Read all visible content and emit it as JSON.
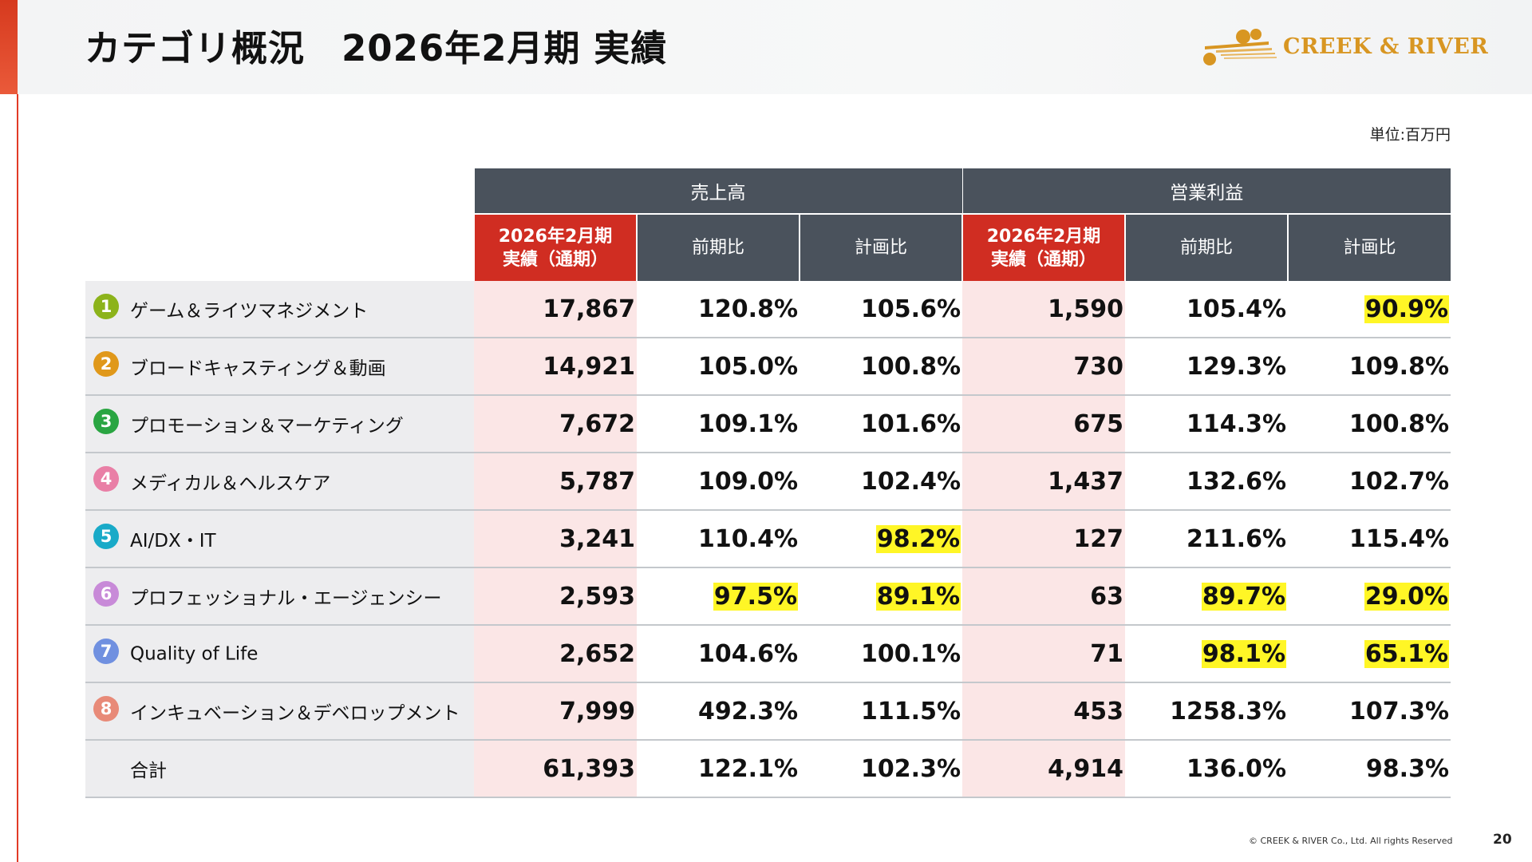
{
  "header": {
    "title": "カテゴリ概況　2026年2月期 実績",
    "logo_text": "CREEK & RIVER"
  },
  "unit_label": "単位:百万円",
  "table": {
    "groups": [
      "売上高",
      "営業利益"
    ],
    "subheaders": [
      "2026年2月期\n実績（通期）",
      "前期比",
      "計画比",
      "2026年2月期\n実績（通期）",
      "前期比",
      "計画比"
    ],
    "rows": [
      {
        "badge": "1",
        "badge_color": "#8cb31b",
        "label": "ゲーム＆ライツマネジメント",
        "values": [
          "17,867",
          "120.8%",
          "105.6%",
          "1,590",
          "105.4%",
          "90.9%"
        ],
        "highlight": [
          false,
          false,
          false,
          false,
          false,
          true
        ]
      },
      {
        "badge": "2",
        "badge_color": "#e0981a",
        "label": "ブロードキャスティング＆動画",
        "values": [
          "14,921",
          "105.0%",
          "100.8%",
          "730",
          "129.3%",
          "109.8%"
        ],
        "highlight": [
          false,
          false,
          false,
          false,
          false,
          false
        ]
      },
      {
        "badge": "3",
        "badge_color": "#2aa542",
        "label": "プロモーション＆マーケティング",
        "values": [
          "7,672",
          "109.1%",
          "101.6%",
          "675",
          "114.3%",
          "100.8%"
        ],
        "highlight": [
          false,
          false,
          false,
          false,
          false,
          false
        ]
      },
      {
        "badge": "4",
        "badge_color": "#e97fa6",
        "label": "メディカル＆ヘルスケア",
        "values": [
          "5,787",
          "109.0%",
          "102.4%",
          "1,437",
          "132.6%",
          "102.7%"
        ],
        "highlight": [
          false,
          false,
          false,
          false,
          false,
          false
        ]
      },
      {
        "badge": "5",
        "badge_color": "#19aac8",
        "label": "AI/DX・IT",
        "values": [
          "3,241",
          "110.4%",
          "98.2%",
          "127",
          "211.6%",
          "115.4%"
        ],
        "highlight": [
          false,
          false,
          true,
          false,
          false,
          false
        ]
      },
      {
        "badge": "6",
        "badge_color": "#c88ad8",
        "label": "プロフェッショナル・エージェンシー",
        "values": [
          "2,593",
          "97.5%",
          "89.1%",
          "63",
          "89.7%",
          "29.0%"
        ],
        "highlight": [
          false,
          true,
          true,
          false,
          true,
          true
        ]
      },
      {
        "badge": "7",
        "badge_color": "#7090e0",
        "label": "Quality of Life",
        "values": [
          "2,652",
          "104.6%",
          "100.1%",
          "71",
          "98.1%",
          "65.1%"
        ],
        "highlight": [
          false,
          false,
          false,
          false,
          true,
          true
        ]
      },
      {
        "badge": "8",
        "badge_color": "#e88a78",
        "label": "インキュベーション＆デベロップメント",
        "values": [
          "7,999",
          "492.3%",
          "111.5%",
          "453",
          "1258.3%",
          "107.3%"
        ],
        "highlight": [
          false,
          false,
          false,
          false,
          false,
          false
        ]
      }
    ],
    "total": {
      "label": "合計",
      "values": [
        "61,393",
        "122.1%",
        "102.3%",
        "4,914",
        "136.0%",
        "98.3%"
      ]
    }
  },
  "footer": {
    "copyright": "© CREEK & RIVER Co., Ltd. All rights Reserved",
    "page": "20"
  },
  "colors": {
    "header_dark": "#4a525c",
    "header_red": "#d02d22",
    "pink_column": "#fbe6e6",
    "highlight": "#fff626",
    "accent": "#e23a26",
    "logo_gold": "#d89622"
  }
}
